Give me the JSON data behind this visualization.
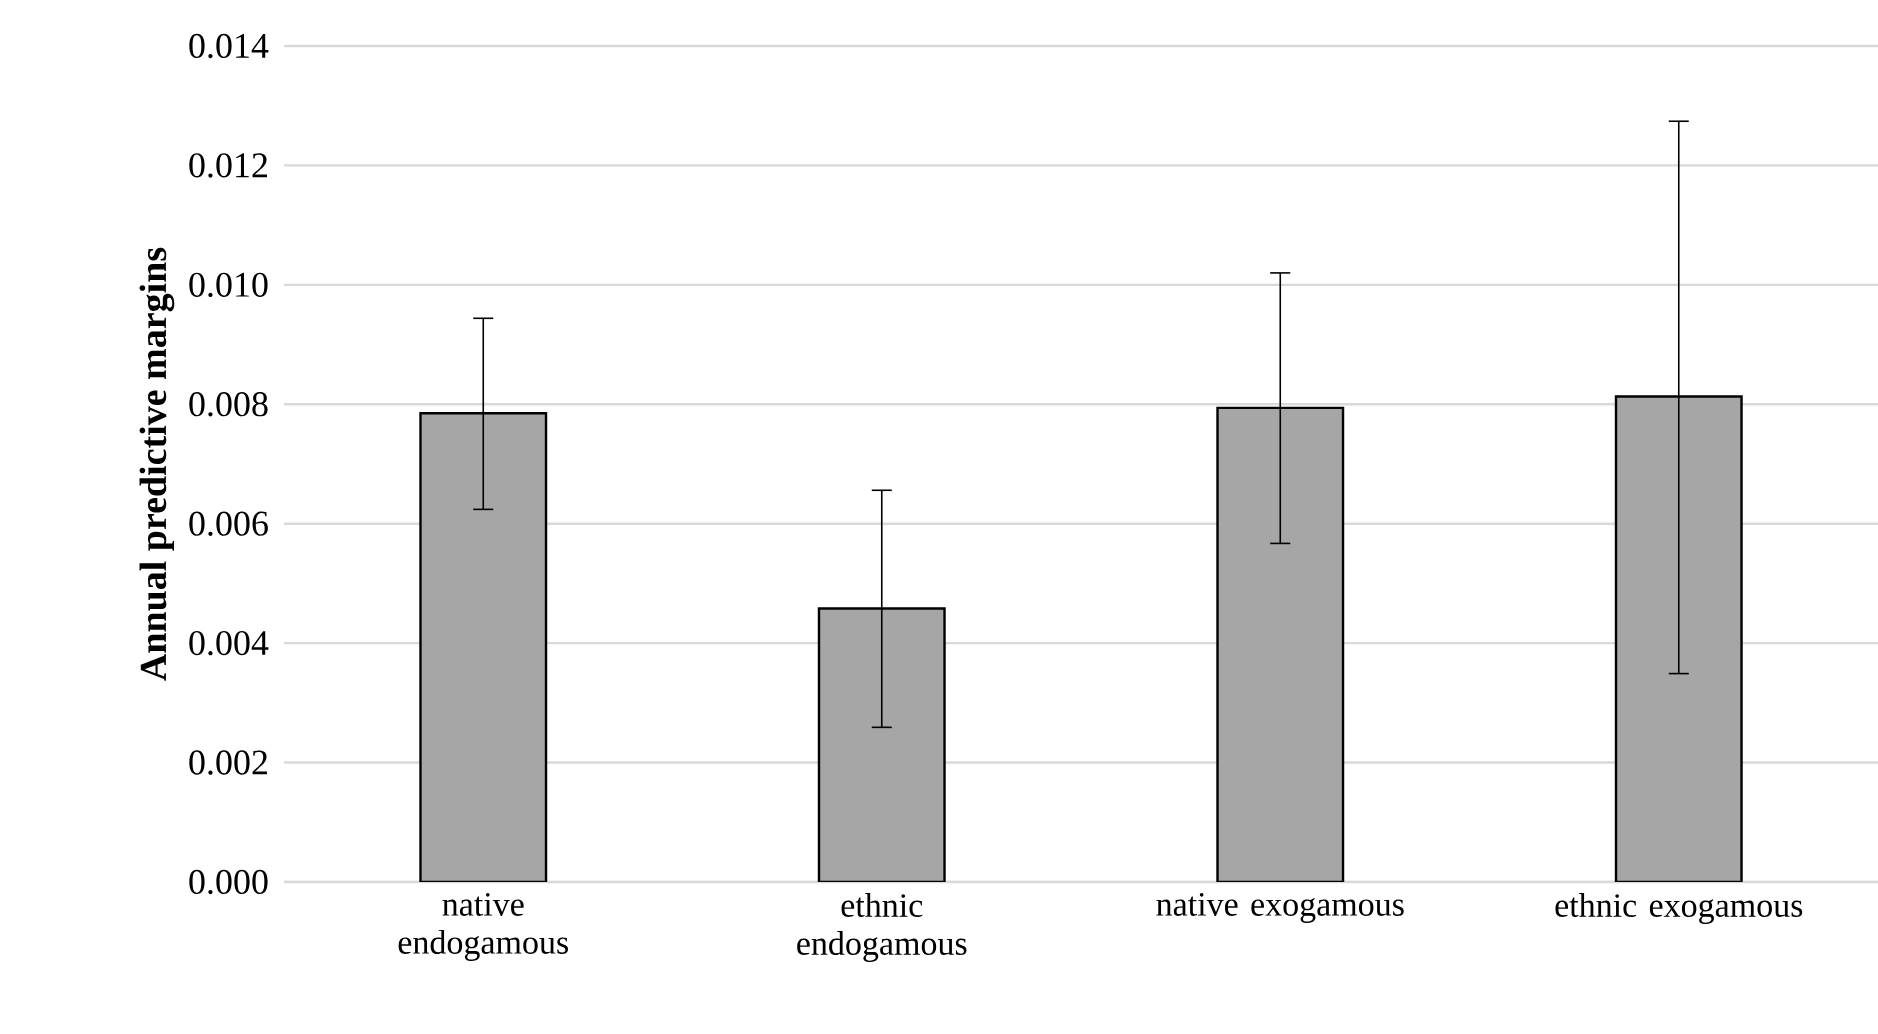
{
  "chart_data": {
    "type": "bar",
    "ylabel": "Annual predictive margins",
    "categories": [
      "native endogamous",
      "ethnic endogamous",
      "native exogamous",
      "ethnic exogamous"
    ],
    "values": [
      0.00785,
      0.00458,
      0.00794,
      0.00813
    ],
    "errors": [
      [
        0.00624,
        0.00944
      ],
      [
        0.00259,
        0.00656
      ],
      [
        0.00567,
        0.0102
      ],
      [
        0.00349,
        0.01274
      ]
    ],
    "color": "#a6a6a6",
    "ylim": [
      0,
      0.014
    ],
    "yticks": [
      {
        "value": 0,
        "label": "0.000"
      },
      {
        "value": 0.002,
        "label": "0.002"
      },
      {
        "value": 0.004,
        "label": "0.004"
      },
      {
        "value": 0.006,
        "label": "0.006"
      },
      {
        "value": 0.008,
        "label": "0.008"
      },
      {
        "value": 0.01,
        "label": "0.010"
      },
      {
        "value": 0.012,
        "label": "0.012"
      },
      {
        "value": 0.014,
        "label": "0.014"
      }
    ],
    "grid": "y"
  }
}
